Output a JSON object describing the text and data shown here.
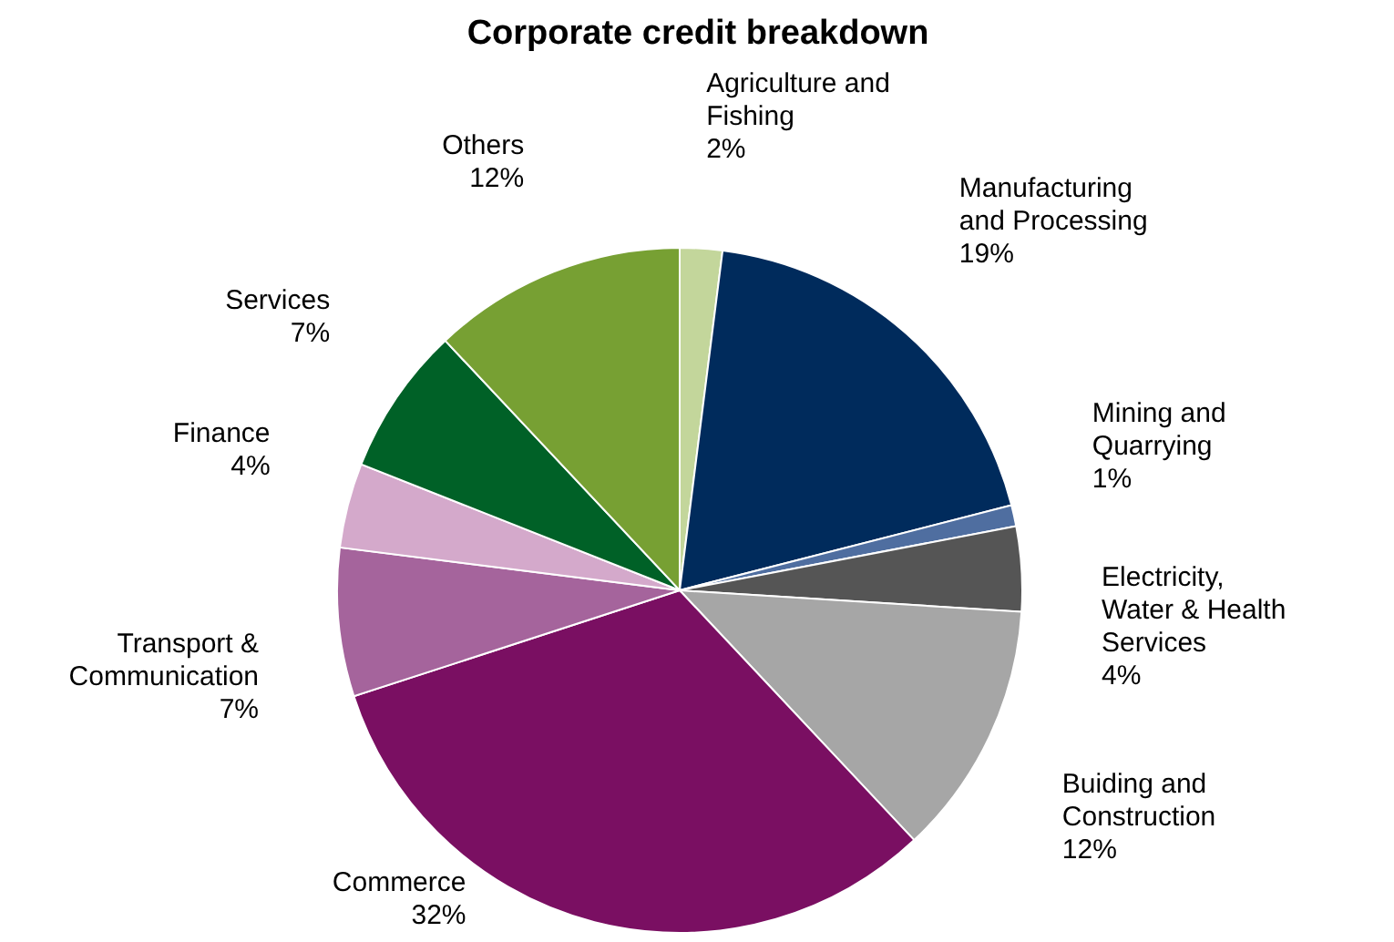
{
  "chart_data": {
    "type": "pie",
    "title": "Corporate credit breakdown",
    "categories": [
      "Agriculture and Fishing",
      "Manufacturing and Processing",
      "Mining and Quarrying",
      "Electricity, Water & Health Services",
      "Buiding and Construction",
      "Commerce",
      "Transport & Communication",
      "Finance",
      "Services",
      "Others"
    ],
    "values": [
      2,
      19,
      1,
      4,
      12,
      32,
      7,
      4,
      7,
      12
    ],
    "value_labels": [
      "2%",
      "19%",
      "1%",
      "4%",
      "12%",
      "32%",
      "7%",
      "4%",
      "7%",
      "12%"
    ],
    "colors": [
      "#c3d69b",
      "#002b5c",
      "#4f6ea0",
      "#555555",
      "#a6a6a6",
      "#7a0f62",
      "#a5649c",
      "#d4a9cb",
      "#006127",
      "#77a033"
    ]
  }
}
